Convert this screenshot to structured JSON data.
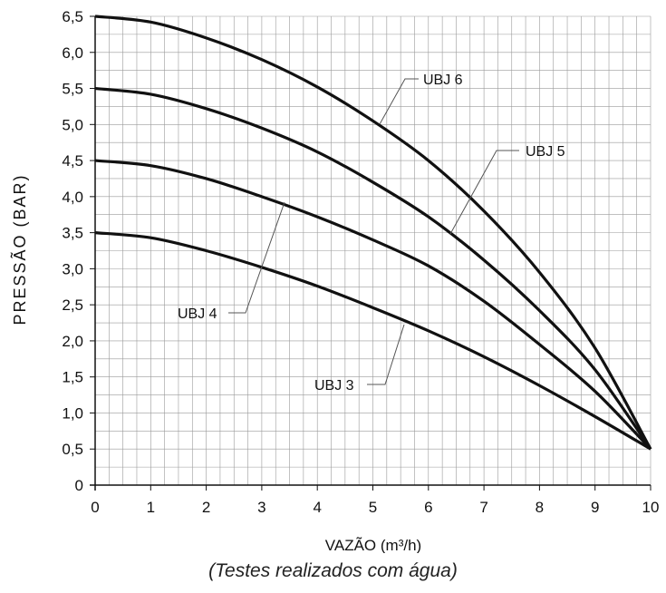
{
  "chart_data": {
    "type": "line",
    "xlabel": "VAZÃO (m³/h)",
    "ylabel": "PRESSÃO  (BAR)",
    "xlim": [
      0,
      10
    ],
    "ylim": [
      0,
      6.5
    ],
    "x_ticks": [
      "0",
      "1",
      "2",
      "3",
      "4",
      "5",
      "6",
      "7",
      "8",
      "9",
      "10"
    ],
    "y_ticks": [
      "0",
      "0,5",
      "1,0",
      "1,5",
      "2,0",
      "2,5",
      "3,0",
      "3,5",
      "4,0",
      "4,5",
      "5,0",
      "5,5",
      "6,0",
      "6,5"
    ],
    "grid": true,
    "series": [
      {
        "name": "UBJ 6",
        "x": [
          0,
          1,
          2,
          3,
          4,
          5,
          6,
          7,
          8,
          9,
          10
        ],
        "y": [
          6.5,
          6.42,
          6.2,
          5.9,
          5.52,
          5.05,
          4.5,
          3.8,
          2.95,
          1.9,
          0.5
        ]
      },
      {
        "name": "UBJ 5",
        "x": [
          0,
          1,
          2,
          3,
          4,
          5,
          6,
          7,
          8,
          9,
          10
        ],
        "y": [
          5.5,
          5.42,
          5.22,
          4.95,
          4.62,
          4.2,
          3.72,
          3.12,
          2.42,
          1.6,
          0.5
        ]
      },
      {
        "name": "UBJ 4",
        "x": [
          0,
          1,
          2,
          3,
          4,
          5,
          6,
          7,
          8,
          9,
          10
        ],
        "y": [
          4.5,
          4.43,
          4.25,
          4.0,
          3.72,
          3.4,
          3.04,
          2.55,
          1.95,
          1.3,
          0.5
        ]
      },
      {
        "name": "UBJ 3",
        "x": [
          0,
          1,
          2,
          3,
          4,
          5,
          6,
          7,
          8,
          9,
          10
        ],
        "y": [
          3.5,
          3.43,
          3.25,
          3.02,
          2.76,
          2.46,
          2.14,
          1.78,
          1.38,
          0.95,
          0.5
        ]
      }
    ]
  },
  "caption": "(Testes realizados com água)"
}
